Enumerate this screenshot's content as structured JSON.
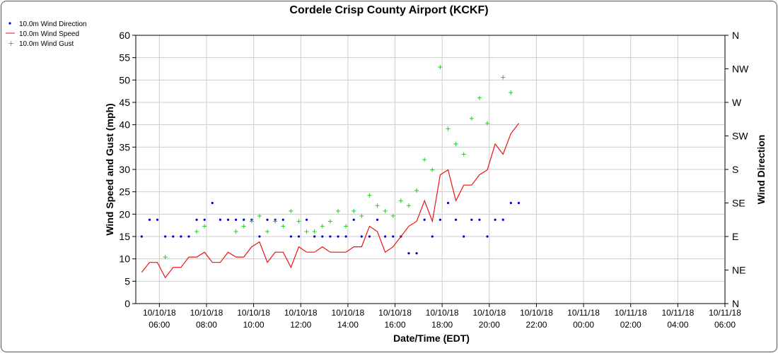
{
  "chart_data": {
    "type": "line",
    "title": "Cordele Crisp County Airport (KCKF)",
    "xlabel": "Date/Time (EDT)",
    "ylabel": "Wind Speed and Gust (mph)",
    "y2label": "Wind Direction",
    "ylim": [
      0,
      60
    ],
    "y_ticks": [
      0,
      5,
      10,
      15,
      20,
      25,
      30,
      35,
      40,
      45,
      50,
      55,
      60
    ],
    "y2_ticks": [
      "N",
      "NE",
      "E",
      "SE",
      "S",
      "SW",
      "W",
      "NW",
      "N"
    ],
    "x_ticks": [
      {
        "date": "10/10/18",
        "time": "06:00"
      },
      {
        "date": "10/10/18",
        "time": "08:00"
      },
      {
        "date": "10/10/18",
        "time": "10:00"
      },
      {
        "date": "10/10/18",
        "time": "12:00"
      },
      {
        "date": "10/10/18",
        "time": "14:00"
      },
      {
        "date": "10/10/18",
        "time": "16:00"
      },
      {
        "date": "10/10/18",
        "time": "18:00"
      },
      {
        "date": "10/10/18",
        "time": "20:00"
      },
      {
        "date": "10/10/18",
        "time": "22:00"
      },
      {
        "date": "10/11/18",
        "time": "00:00"
      },
      {
        "date": "10/11/18",
        "time": "02:00"
      },
      {
        "date": "10/11/18",
        "time": "04:00"
      },
      {
        "date": "10/11/18",
        "time": "06:00"
      }
    ],
    "xlim": [
      "10/10/18 05:00",
      "10/11/18 06:00"
    ],
    "grid": true,
    "legend_position": "top-left",
    "series": [
      {
        "name": "10.0m Wind Direction",
        "kind": "dots",
        "axis": "right",
        "color": "#0000cc",
        "points": [
          [
            "10/10/18 05:15",
            "E"
          ],
          [
            "10/10/18 05:35",
            "ESE"
          ],
          [
            "10/10/18 05:55",
            "ESE"
          ],
          [
            "10/10/18 06:15",
            "E"
          ],
          [
            "10/10/18 06:35",
            "E"
          ],
          [
            "10/10/18 06:55",
            "E"
          ],
          [
            "10/10/18 07:15",
            "E"
          ],
          [
            "10/10/18 07:35",
            "ESE"
          ],
          [
            "10/10/18 07:55",
            "ESE"
          ],
          [
            "10/10/18 08:15",
            "SE"
          ],
          [
            "10/10/18 08:35",
            "ESE"
          ],
          [
            "10/10/18 08:55",
            "ESE"
          ],
          [
            "10/10/18 09:15",
            "ESE"
          ],
          [
            "10/10/18 09:35",
            "ESE"
          ],
          [
            "10/10/18 09:55",
            "ESE"
          ],
          [
            "10/10/18 10:15",
            "E"
          ],
          [
            "10/10/18 10:35",
            "ESE"
          ],
          [
            "10/10/18 10:55",
            "ESE"
          ],
          [
            "10/10/18 11:15",
            "ESE"
          ],
          [
            "10/10/18 11:35",
            "E"
          ],
          [
            "10/10/18 11:55",
            "E"
          ],
          [
            "10/10/18 12:15",
            "ESE"
          ],
          [
            "10/10/18 12:35",
            "E"
          ],
          [
            "10/10/18 12:55",
            "E"
          ],
          [
            "10/10/18 13:15",
            "E"
          ],
          [
            "10/10/18 13:35",
            "E"
          ],
          [
            "10/10/18 13:55",
            "E"
          ],
          [
            "10/10/18 14:15",
            "ESE"
          ],
          [
            "10/10/18 14:35",
            "E"
          ],
          [
            "10/10/18 14:55",
            "E"
          ],
          [
            "10/10/18 15:15",
            "ESE"
          ],
          [
            "10/10/18 15:35",
            "E"
          ],
          [
            "10/10/18 15:55",
            "E"
          ],
          [
            "10/10/18 16:15",
            "E"
          ],
          [
            "10/10/18 16:35",
            "ENE"
          ],
          [
            "10/10/18 16:55",
            "ENE"
          ],
          [
            "10/10/18 17:15",
            "ESE"
          ],
          [
            "10/10/18 17:35",
            "E"
          ],
          [
            "10/10/18 17:55",
            "ESE"
          ],
          [
            "10/10/18 18:15",
            "SE"
          ],
          [
            "10/10/18 18:35",
            "ESE"
          ],
          [
            "10/10/18 18:55",
            "E"
          ],
          [
            "10/10/18 19:15",
            "ESE"
          ],
          [
            "10/10/18 19:35",
            "ESE"
          ],
          [
            "10/10/18 19:55",
            "E"
          ],
          [
            "10/10/18 20:15",
            "ESE"
          ],
          [
            "10/10/18 20:35",
            "ESE"
          ],
          [
            "10/10/18 20:55",
            "SE"
          ],
          [
            "10/10/18 21:15",
            "SE"
          ]
        ]
      },
      {
        "name": "10.0m Wind Speed",
        "kind": "line",
        "axis": "left",
        "color": "#ee1111",
        "points": [
          [
            "10/10/18 05:15",
            7
          ],
          [
            "10/10/18 05:35",
            9.2
          ],
          [
            "10/10/18 05:55",
            9.2
          ],
          [
            "10/10/18 06:15",
            5.8
          ],
          [
            "10/10/18 06:35",
            8.1
          ],
          [
            "10/10/18 06:55",
            8.1
          ],
          [
            "10/10/18 07:15",
            10.4
          ],
          [
            "10/10/18 07:35",
            10.4
          ],
          [
            "10/10/18 07:55",
            11.5
          ],
          [
            "10/10/18 08:15",
            9.2
          ],
          [
            "10/10/18 08:35",
            9.2
          ],
          [
            "10/10/18 08:55",
            11.5
          ],
          [
            "10/10/18 09:15",
            10.4
          ],
          [
            "10/10/18 09:35",
            10.4
          ],
          [
            "10/10/18 09:55",
            12.7
          ],
          [
            "10/10/18 10:15",
            13.8
          ],
          [
            "10/10/18 10:35",
            9.2
          ],
          [
            "10/10/18 10:55",
            11.5
          ],
          [
            "10/10/18 11:15",
            11.5
          ],
          [
            "10/10/18 11:35",
            8.1
          ],
          [
            "10/10/18 11:55",
            12.7
          ],
          [
            "10/10/18 12:15",
            11.5
          ],
          [
            "10/10/18 12:35",
            11.5
          ],
          [
            "10/10/18 12:55",
            12.7
          ],
          [
            "10/10/18 13:15",
            11.5
          ],
          [
            "10/10/18 13:35",
            11.5
          ],
          [
            "10/10/18 13:55",
            11.5
          ],
          [
            "10/10/18 14:15",
            12.7
          ],
          [
            "10/10/18 14:35",
            12.7
          ],
          [
            "10/10/18 14:55",
            17.3
          ],
          [
            "10/10/18 15:15",
            16.1
          ],
          [
            "10/10/18 15:35",
            11.5
          ],
          [
            "10/10/18 15:55",
            12.7
          ],
          [
            "10/10/18 16:15",
            15
          ],
          [
            "10/10/18 16:35",
            17.3
          ],
          [
            "10/10/18 16:55",
            18.4
          ],
          [
            "10/10/18 17:15",
            23
          ],
          [
            "10/10/18 17:35",
            18.4
          ],
          [
            "10/10/18 17:55",
            28.8
          ],
          [
            "10/10/18 18:15",
            29.9
          ],
          [
            "10/10/18 18:35",
            23
          ],
          [
            "10/10/18 18:55",
            26.5
          ],
          [
            "10/10/18 19:15",
            26.5
          ],
          [
            "10/10/18 19:35",
            28.8
          ],
          [
            "10/10/18 19:55",
            29.9
          ],
          [
            "10/10/18 20:15",
            35.7
          ],
          [
            "10/10/18 20:35",
            33.4
          ],
          [
            "10/10/18 20:55",
            38
          ],
          [
            "10/10/18 21:15",
            40.3
          ]
        ]
      },
      {
        "name": "10.0m Wind Gust",
        "kind": "plus",
        "axis": "left",
        "color": "#22cc22",
        "points": [
          [
            "10/10/18 06:15",
            10.4
          ],
          [
            "10/10/18 07:35",
            16.1
          ],
          [
            "10/10/18 07:55",
            17.3
          ],
          [
            "10/10/18 09:15",
            16.1
          ],
          [
            "10/10/18 09:35",
            17.3
          ],
          [
            "10/10/18 09:55",
            18.4
          ],
          [
            "10/10/18 10:15",
            19.6
          ],
          [
            "10/10/18 10:35",
            16.1
          ],
          [
            "10/10/18 10:55",
            18.4
          ],
          [
            "10/10/18 11:15",
            17.3
          ],
          [
            "10/10/18 11:35",
            20.7
          ],
          [
            "10/10/18 11:55",
            18.4
          ],
          [
            "10/10/18 12:15",
            16.1
          ],
          [
            "10/10/18 12:35",
            16.1
          ],
          [
            "10/10/18 12:55",
            17.3
          ],
          [
            "10/10/18 13:15",
            18.4
          ],
          [
            "10/10/18 13:35",
            20.7
          ],
          [
            "10/10/18 13:55",
            17.3
          ],
          [
            "10/10/18 14:15",
            20.7
          ],
          [
            "10/10/18 14:35",
            19.6
          ],
          [
            "10/10/18 14:55",
            24.2
          ],
          [
            "10/10/18 15:15",
            21.9
          ],
          [
            "10/10/18 15:35",
            20.7
          ],
          [
            "10/10/18 15:55",
            19.6
          ],
          [
            "10/10/18 16:15",
            23
          ],
          [
            "10/10/18 16:35",
            21.9
          ],
          [
            "10/10/18 16:55",
            25.3
          ],
          [
            "10/10/18 17:15",
            32.2
          ],
          [
            "10/10/18 17:35",
            29.9
          ],
          [
            "10/10/18 17:55",
            52.9
          ],
          [
            "10/10/18 18:15",
            39.1
          ],
          [
            "10/10/18 18:35",
            35.7
          ],
          [
            "10/10/18 18:55",
            33.4
          ],
          [
            "10/10/18 19:15",
            41.4
          ],
          [
            "10/10/18 19:35",
            46
          ],
          [
            "10/10/18 19:55",
            40.3
          ],
          [
            "10/10/18 20:35",
            50.6
          ],
          [
            "10/10/18 20:55",
            47.2
          ]
        ]
      }
    ]
  }
}
